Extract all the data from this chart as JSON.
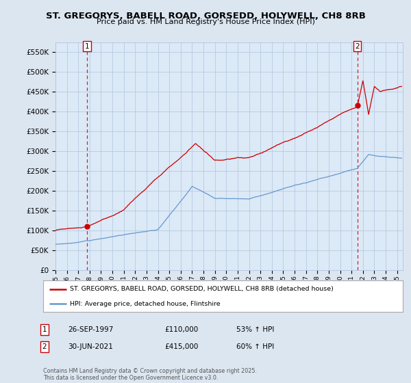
{
  "title": "ST. GREGORYS, BABELL ROAD, GORSEDD, HOLYWELL, CH8 8RB",
  "subtitle": "Price paid vs. HM Land Registry's House Price Index (HPI)",
  "legend_line1": "ST. GREGORYS, BABELL ROAD, GORSEDD, HOLYWELL, CH8 8RB (detached house)",
  "legend_line2": "HPI: Average price, detached house, Flintshire",
  "annotation1_label": "1",
  "annotation1_date": "26-SEP-1997",
  "annotation1_price": "£110,000",
  "annotation1_hpi": "53% ↑ HPI",
  "annotation2_label": "2",
  "annotation2_date": "30-JUN-2021",
  "annotation2_price": "£415,000",
  "annotation2_hpi": "60% ↑ HPI",
  "footer": "Contains HM Land Registry data © Crown copyright and database right 2025.\nThis data is licensed under the Open Government Licence v3.0.",
  "red_color": "#cc0000",
  "blue_color": "#6699cc",
  "background_color": "#dce6f1",
  "plot_bg": "#dce9f7",
  "ylim": [
    0,
    575000
  ],
  "yticks": [
    0,
    50000,
    100000,
    150000,
    200000,
    250000,
    300000,
    350000,
    400000,
    450000,
    500000,
    550000
  ],
  "xlim_start": 1995.0,
  "xlim_end": 2025.5,
  "marker1_x": 1997.75,
  "marker1_y": 110000,
  "marker2_x": 2021.5,
  "marker2_y": 415000
}
